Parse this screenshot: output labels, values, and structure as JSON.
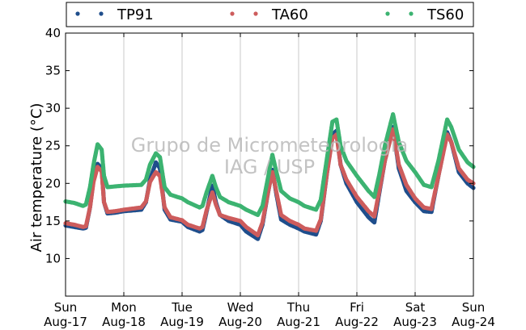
{
  "chart_data": {
    "type": "scatter",
    "title": "",
    "xlabel": "",
    "ylabel": "Air temperature (°C)",
    "ylim": [
      5,
      40
    ],
    "yticks": [
      10,
      15,
      20,
      25,
      30,
      35,
      40
    ],
    "xlim": [
      0,
      7
    ],
    "xticks": [
      {
        "x": 0,
        "day": "Sun",
        "date": "Aug-17"
      },
      {
        "x": 1,
        "day": "Mon",
        "date": "Aug-18"
      },
      {
        "x": 2,
        "day": "Tue",
        "date": "Aug-19"
      },
      {
        "x": 3,
        "day": "Wed",
        "date": "Aug-20"
      },
      {
        "x": 4,
        "day": "Thu",
        "date": "Aug-21"
      },
      {
        "x": 5,
        "day": "Fri",
        "date": "Aug-22"
      },
      {
        "x": 6,
        "day": "Sat",
        "date": "Aug-23"
      },
      {
        "x": 7,
        "day": "Sun",
        "date": "Aug-24"
      }
    ],
    "grid": "vertical",
    "legend_position": "top",
    "watermark": [
      "Grupo de Micrometeorologia",
      "IAG / USP"
    ],
    "series": [
      {
        "name": "TP91",
        "color": "#1f4e8c",
        "points": [
          [
            0.0,
            14.4
          ],
          [
            0.15,
            14.2
          ],
          [
            0.3,
            14.0
          ],
          [
            0.35,
            14.1
          ],
          [
            0.42,
            16.8
          ],
          [
            0.48,
            20.5
          ],
          [
            0.55,
            22.6
          ],
          [
            0.62,
            22.0
          ],
          [
            0.66,
            17.5
          ],
          [
            0.72,
            16.0
          ],
          [
            0.85,
            16.1
          ],
          [
            1.0,
            16.3
          ],
          [
            1.3,
            16.5
          ],
          [
            1.38,
            17.5
          ],
          [
            1.45,
            20.5
          ],
          [
            1.55,
            22.8
          ],
          [
            1.62,
            22.0
          ],
          [
            1.7,
            16.5
          ],
          [
            1.8,
            15.2
          ],
          [
            2.0,
            14.9
          ],
          [
            2.1,
            14.2
          ],
          [
            2.3,
            13.6
          ],
          [
            2.35,
            13.8
          ],
          [
            2.42,
            16.2
          ],
          [
            2.52,
            19.7
          ],
          [
            2.58,
            17.5
          ],
          [
            2.65,
            15.8
          ],
          [
            2.8,
            15.0
          ],
          [
            3.0,
            14.5
          ],
          [
            3.1,
            13.6
          ],
          [
            3.3,
            12.6
          ],
          [
            3.38,
            14.5
          ],
          [
            3.48,
            19.0
          ],
          [
            3.55,
            21.8
          ],
          [
            3.62,
            18.5
          ],
          [
            3.7,
            15.2
          ],
          [
            3.85,
            14.5
          ],
          [
            4.0,
            14.0
          ],
          [
            4.1,
            13.6
          ],
          [
            4.3,
            13.2
          ],
          [
            4.38,
            15.0
          ],
          [
            4.48,
            21.0
          ],
          [
            4.58,
            26.5
          ],
          [
            4.65,
            27.0
          ],
          [
            4.72,
            22.5
          ],
          [
            4.82,
            20.0
          ],
          [
            5.0,
            17.5
          ],
          [
            5.2,
            15.5
          ],
          [
            5.3,
            14.8
          ],
          [
            5.38,
            18.5
          ],
          [
            5.48,
            23.0
          ],
          [
            5.62,
            27.5
          ],
          [
            5.72,
            22.0
          ],
          [
            5.85,
            19.0
          ],
          [
            6.0,
            17.5
          ],
          [
            6.15,
            16.3
          ],
          [
            6.28,
            16.2
          ],
          [
            6.4,
            21.0
          ],
          [
            6.55,
            26.8
          ],
          [
            6.62,
            25.5
          ],
          [
            6.75,
            21.5
          ],
          [
            6.9,
            20.0
          ],
          [
            7.0,
            19.4
          ]
        ]
      },
      {
        "name": "TA60",
        "color": "#cd5c5c",
        "points": [
          [
            0.0,
            14.7
          ],
          [
            0.15,
            14.5
          ],
          [
            0.3,
            14.2
          ],
          [
            0.35,
            14.3
          ],
          [
            0.42,
            16.8
          ],
          [
            0.48,
            20.2
          ],
          [
            0.55,
            22.2
          ],
          [
            0.62,
            21.6
          ],
          [
            0.66,
            17.5
          ],
          [
            0.72,
            16.2
          ],
          [
            0.85,
            16.3
          ],
          [
            1.0,
            16.5
          ],
          [
            1.3,
            16.8
          ],
          [
            1.38,
            17.6
          ],
          [
            1.45,
            20.2
          ],
          [
            1.55,
            21.5
          ],
          [
            1.62,
            21.0
          ],
          [
            1.7,
            16.8
          ],
          [
            1.8,
            15.5
          ],
          [
            2.0,
            15.1
          ],
          [
            2.1,
            14.5
          ],
          [
            2.3,
            14.0
          ],
          [
            2.35,
            14.2
          ],
          [
            2.42,
            16.4
          ],
          [
            2.52,
            18.8
          ],
          [
            2.58,
            17.2
          ],
          [
            2.65,
            15.8
          ],
          [
            2.8,
            15.4
          ],
          [
            3.0,
            15.0
          ],
          [
            3.1,
            14.2
          ],
          [
            3.3,
            13.1
          ],
          [
            3.38,
            14.8
          ],
          [
            3.48,
            19.0
          ],
          [
            3.55,
            21.5
          ],
          [
            3.62,
            18.8
          ],
          [
            3.7,
            15.8
          ],
          [
            3.85,
            15.0
          ],
          [
            4.0,
            14.5
          ],
          [
            4.1,
            14.0
          ],
          [
            4.3,
            13.7
          ],
          [
            4.38,
            15.2
          ],
          [
            4.48,
            21.0
          ],
          [
            4.58,
            26.0
          ],
          [
            4.65,
            26.5
          ],
          [
            4.72,
            22.5
          ],
          [
            4.82,
            20.5
          ],
          [
            5.0,
            18.2
          ],
          [
            5.2,
            16.3
          ],
          [
            5.3,
            15.6
          ],
          [
            5.38,
            18.8
          ],
          [
            5.48,
            23.0
          ],
          [
            5.62,
            27.2
          ],
          [
            5.72,
            22.5
          ],
          [
            5.85,
            19.8
          ],
          [
            6.0,
            18.0
          ],
          [
            6.15,
            16.8
          ],
          [
            6.28,
            16.6
          ],
          [
            6.4,
            21.0
          ],
          [
            6.55,
            26.5
          ],
          [
            6.62,
            25.5
          ],
          [
            6.75,
            22.0
          ],
          [
            6.9,
            20.5
          ],
          [
            7.0,
            20.0
          ]
        ]
      },
      {
        "name": "TS60",
        "color": "#3cb371",
        "points": [
          [
            0.0,
            17.6
          ],
          [
            0.15,
            17.4
          ],
          [
            0.3,
            17.0
          ],
          [
            0.35,
            17.2
          ],
          [
            0.42,
            19.5
          ],
          [
            0.48,
            22.5
          ],
          [
            0.55,
            25.2
          ],
          [
            0.62,
            24.5
          ],
          [
            0.66,
            21.0
          ],
          [
            0.72,
            19.5
          ],
          [
            0.85,
            19.6
          ],
          [
            1.0,
            19.7
          ],
          [
            1.3,
            19.8
          ],
          [
            1.38,
            20.5
          ],
          [
            1.45,
            22.5
          ],
          [
            1.55,
            24.0
          ],
          [
            1.62,
            23.5
          ],
          [
            1.7,
            19.5
          ],
          [
            1.8,
            18.5
          ],
          [
            2.0,
            18.0
          ],
          [
            2.1,
            17.5
          ],
          [
            2.3,
            16.8
          ],
          [
            2.35,
            17.0
          ],
          [
            2.42,
            18.8
          ],
          [
            2.52,
            21.0
          ],
          [
            2.58,
            19.5
          ],
          [
            2.65,
            18.2
          ],
          [
            2.8,
            17.5
          ],
          [
            3.0,
            17.0
          ],
          [
            3.1,
            16.5
          ],
          [
            3.3,
            15.8
          ],
          [
            3.38,
            17.0
          ],
          [
            3.48,
            21.0
          ],
          [
            3.55,
            23.8
          ],
          [
            3.62,
            21.5
          ],
          [
            3.7,
            19.0
          ],
          [
            3.85,
            18.0
          ],
          [
            4.0,
            17.5
          ],
          [
            4.1,
            17.0
          ],
          [
            4.3,
            16.5
          ],
          [
            4.38,
            17.8
          ],
          [
            4.48,
            23.0
          ],
          [
            4.58,
            28.2
          ],
          [
            4.65,
            28.5
          ],
          [
            4.72,
            25.0
          ],
          [
            4.82,
            23.0
          ],
          [
            5.0,
            21.0
          ],
          [
            5.2,
            19.0
          ],
          [
            5.3,
            18.2
          ],
          [
            5.38,
            21.0
          ],
          [
            5.48,
            25.0
          ],
          [
            5.62,
            29.2
          ],
          [
            5.72,
            25.5
          ],
          [
            5.85,
            23.0
          ],
          [
            6.0,
            21.5
          ],
          [
            6.15,
            19.8
          ],
          [
            6.28,
            19.5
          ],
          [
            6.4,
            23.0
          ],
          [
            6.55,
            28.5
          ],
          [
            6.62,
            27.5
          ],
          [
            6.75,
            24.5
          ],
          [
            6.9,
            22.8
          ],
          [
            7.0,
            22.2
          ]
        ]
      }
    ]
  }
}
